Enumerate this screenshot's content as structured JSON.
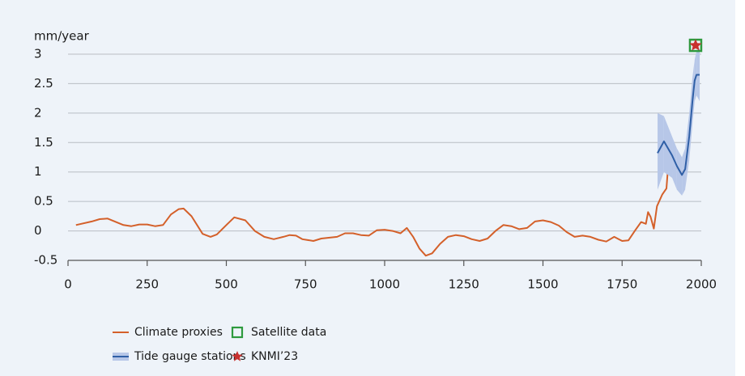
{
  "chart_data": {
    "type": "line",
    "y_label": "mm/year",
    "xlim": [
      0,
      2000
    ],
    "xticks": [
      0,
      250,
      500,
      750,
      1000,
      1250,
      1500,
      1750,
      2000
    ],
    "ylim": [
      -0.5,
      3.0
    ],
    "yticks": [
      -0.5,
      0.0,
      0.5,
      1.0,
      1.5,
      2.0,
      2.5,
      3.0
    ],
    "grid": true,
    "series": [
      {
        "name": "Climate proxies",
        "color": "#d4602a",
        "x": [
          25,
          75,
          100,
          125,
          175,
          200,
          225,
          250,
          275,
          300,
          325,
          350,
          365,
          390,
          425,
          450,
          470,
          500,
          525,
          560,
          590,
          620,
          650,
          680,
          700,
          720,
          740,
          775,
          800,
          850,
          875,
          900,
          925,
          950,
          975,
          1000,
          1025,
          1050,
          1070,
          1090,
          1110,
          1130,
          1150,
          1175,
          1200,
          1225,
          1250,
          1275,
          1300,
          1325,
          1350,
          1375,
          1400,
          1425,
          1450,
          1475,
          1500,
          1525,
          1550,
          1575,
          1600,
          1625,
          1650,
          1675,
          1700,
          1725,
          1750,
          1770,
          1790,
          1810,
          1825,
          1832,
          1840,
          1850,
          1860,
          1877,
          1890,
          1898,
          1908,
          1918,
          1926,
          1936,
          1948
        ],
        "values": [
          0.1,
          0.16,
          0.2,
          0.21,
          0.1,
          0.08,
          0.11,
          0.11,
          0.08,
          0.1,
          0.28,
          0.37,
          0.38,
          0.25,
          -0.05,
          -0.1,
          -0.06,
          0.1,
          0.23,
          0.18,
          0.0,
          -0.1,
          -0.14,
          -0.1,
          -0.07,
          -0.08,
          -0.14,
          -0.17,
          -0.13,
          -0.1,
          -0.04,
          -0.04,
          -0.07,
          -0.08,
          0.01,
          0.02,
          0.0,
          -0.04,
          0.05,
          -0.1,
          -0.3,
          -0.42,
          -0.38,
          -0.22,
          -0.1,
          -0.07,
          -0.09,
          -0.14,
          -0.17,
          -0.13,
          0.0,
          0.1,
          0.08,
          0.03,
          0.05,
          0.16,
          0.18,
          0.15,
          0.09,
          -0.02,
          -0.1,
          -0.08,
          -0.1,
          -0.15,
          -0.18,
          -0.1,
          -0.17,
          -0.16,
          0.0,
          0.15,
          0.12,
          0.32,
          0.24,
          0.04,
          0.42,
          0.62,
          0.72,
          1.28,
          1.05,
          1.02,
          1.12,
          1.02,
          0.98
        ]
      },
      {
        "name": "Tide gauge stations",
        "color": "#2f5fa6",
        "band_color": "#b7c7e8",
        "x": [
          1862,
          1882,
          1908,
          1923,
          1939,
          1949,
          1962,
          1972,
          1979,
          1985,
          1995
        ],
        "values": [
          1.32,
          1.52,
          1.28,
          1.1,
          0.95,
          1.05,
          1.6,
          2.2,
          2.55,
          2.65,
          2.65
        ],
        "lower": [
          0.7,
          1.0,
          0.9,
          0.7,
          0.6,
          0.7,
          1.2,
          1.8,
          2.2,
          2.3,
          2.2
        ],
        "upper": [
          2.0,
          1.95,
          1.6,
          1.4,
          1.25,
          1.4,
          2.0,
          2.6,
          2.9,
          3.05,
          3.1
        ]
      },
      {
        "name": "Satellite data",
        "color": "#2e9a3e",
        "marker": "square",
        "x": [
          1982
        ],
        "values": [
          3.15
        ]
      },
      {
        "name": "KNMI’23",
        "color": "#c8312f",
        "marker": "star",
        "x": [
          1982
        ],
        "values": [
          3.15
        ]
      }
    ]
  }
}
